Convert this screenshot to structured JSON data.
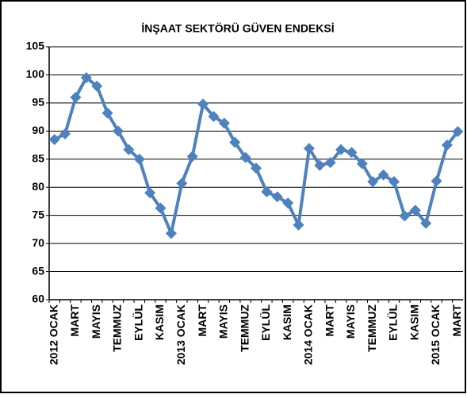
{
  "chart_data": {
    "type": "line",
    "title": "İNŞAAT SEKTÖRÜ GÜVEN ENDEKSİ",
    "categories": [
      "2012 OCAK",
      null,
      "MART",
      null,
      "MAYIS",
      null,
      "TEMMUZ",
      null,
      "EYLÜL",
      null,
      "KASIM",
      null,
      "2013 OCAK",
      null,
      "MART",
      null,
      "MAYIS",
      null,
      "TEMMUZ",
      null,
      "EYLÜL",
      null,
      "KASIM",
      null,
      "2014 OCAK",
      null,
      "MART",
      null,
      "MAYIS",
      null,
      "TEMMUZ",
      null,
      "EYLÜL",
      null,
      "KASIM",
      null,
      "2015 OCAK",
      null,
      "MART"
    ],
    "values": [
      88.5,
      89.5,
      96,
      99.5,
      98,
      93.2,
      90,
      86.7,
      85,
      79,
      76.3,
      71.8,
      80.7,
      85.5,
      94.8,
      92.6,
      91.4,
      88,
      85.3,
      83.4,
      79.2,
      78.3,
      77.2,
      73.3,
      86.9,
      83.9,
      84.4,
      86.7,
      86.2,
      84.2,
      81,
      82.2,
      81,
      74.9,
      75.9,
      73.6,
      81.1,
      87.5,
      89.9
    ],
    "color": "#4f81bd",
    "ylim": [
      60,
      105
    ],
    "yticks": [
      60,
      65,
      70,
      75,
      80,
      85,
      90,
      95,
      100,
      105
    ],
    "grid": true
  }
}
